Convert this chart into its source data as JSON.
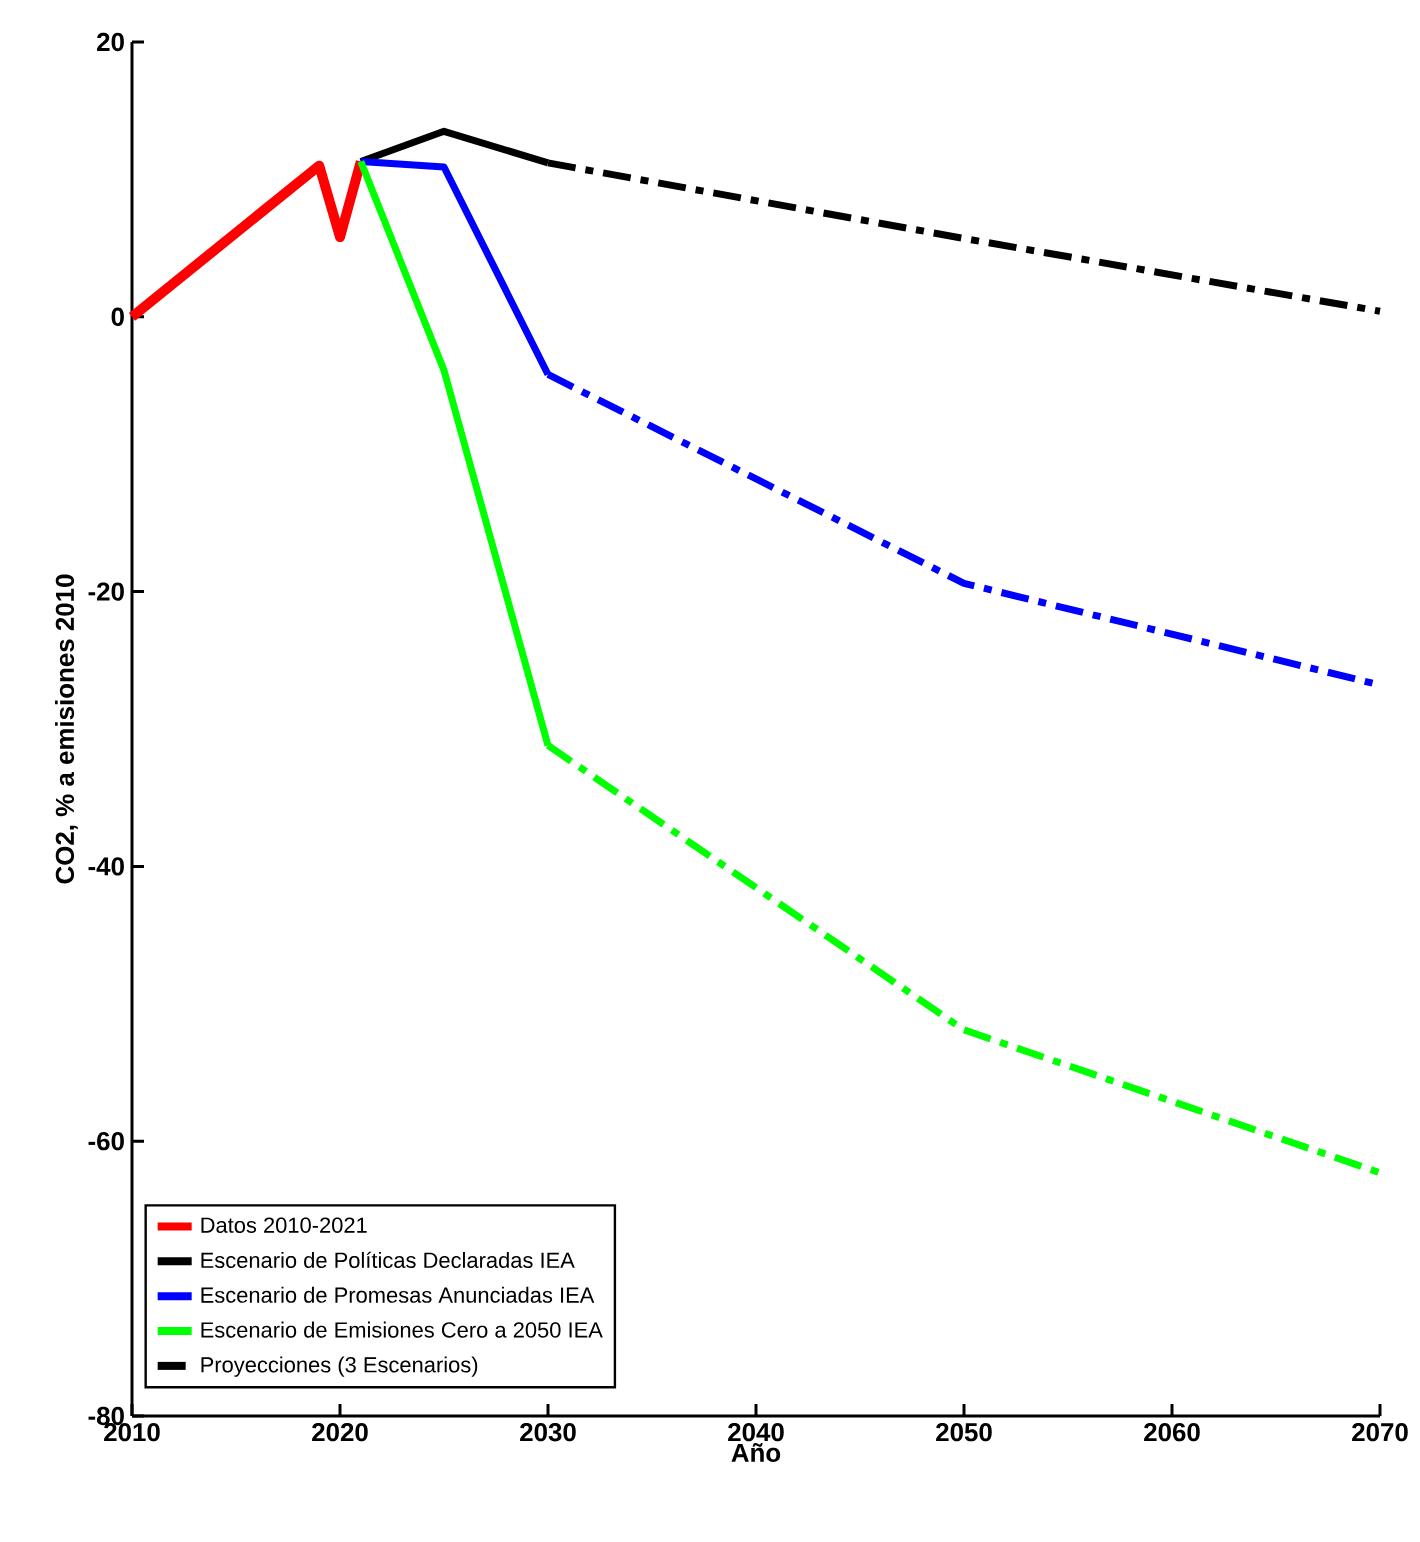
{
  "chart_data": {
    "type": "line",
    "xlabel": "Año",
    "ylabel": "CO2, % a emisiones 2010",
    "xlim": [
      2010,
      2070
    ],
    "xticks": [
      2010,
      2020,
      2030,
      2040,
      2050,
      2060,
      2070
    ],
    "ylim": [
      -80,
      20
    ],
    "yticks": [
      -80,
      -60,
      -40,
      -20,
      0,
      20
    ],
    "legend": "bottom left",
    "marker": "none",
    "series": [
      {
        "name": "Datos 2010-2021",
        "color": "#ff0000",
        "line_style": "solid",
        "x": [
          2010,
          2019,
          2020,
          2021
        ],
        "values": [
          0,
          11,
          5.8,
          11.3
        ]
      },
      {
        "name": "Escenario de Políticas Declaradas IEA",
        "color": "#000000",
        "line_style": "solid",
        "x": [
          2021,
          2025,
          2030
        ],
        "values": [
          11.3,
          13.5,
          11.2
        ]
      },
      {
        "name": "Escenario de Promesas Anunciadas IEA",
        "color": "#0000ff",
        "line_style": "solid",
        "x": [
          2021,
          2025,
          2030
        ],
        "values": [
          11.3,
          10.9,
          -4.2
        ]
      },
      {
        "name": "Escenario de Emisiones Cero a 2050 IEA",
        "color": "#00ff00",
        "line_style": "solid",
        "x": [
          2021,
          2025,
          2030
        ],
        "values": [
          11.3,
          -3.9,
          -31.2
        ]
      },
      {
        "name": "Proyecciones (3 Escenarios)",
        "color": "#000000",
        "line_style": "dashed",
        "x": [
          2030,
          2050,
          2070
        ],
        "values": [
          11.2,
          5.7,
          0.4
        ]
      },
      {
        "color": "#0000ff",
        "line_style": "dashed",
        "x": [
          2030,
          2050,
          2070
        ],
        "values": [
          -4.2,
          -19.4,
          -26.8
        ]
      },
      {
        "color": "#00ff00",
        "line_style": "dashed",
        "x": [
          2030,
          2050,
          2070
        ],
        "values": [
          -31.2,
          -51.9,
          -62.3
        ]
      }
    ]
  }
}
